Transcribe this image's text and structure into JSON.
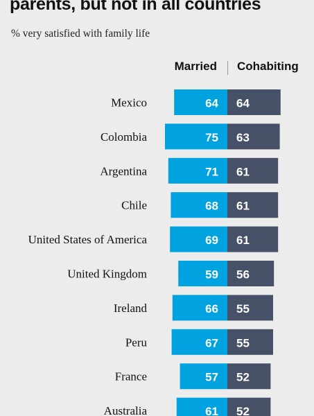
{
  "header": {
    "title": "parents, but not in all countries",
    "subtitle": "% very satisfied with family life"
  },
  "colors": {
    "married": "#00a2e0",
    "cohabiting": "#465066"
  },
  "chart_data": {
    "type": "bar",
    "orientation": "diverging-horizontal",
    "categories": [
      "Mexico",
      "Colombia",
      "Argentina",
      "Chile",
      "United States of America",
      "United Kingdom",
      "Ireland",
      "Peru",
      "France",
      "Australia"
    ],
    "series": [
      {
        "name": "Married",
        "values": [
          64,
          75,
          71,
          68,
          69,
          59,
          66,
          67,
          57,
          61
        ]
      },
      {
        "name": "Cohabiting",
        "values": [
          64,
          63,
          61,
          61,
          61,
          56,
          55,
          55,
          52,
          52
        ]
      }
    ]
  }
}
